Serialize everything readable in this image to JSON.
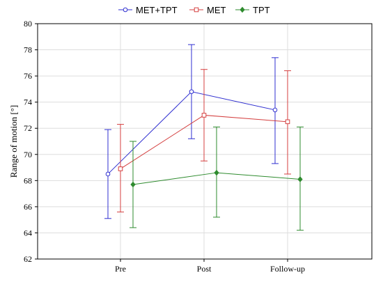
{
  "chart_data": {
    "type": "line",
    "title": "",
    "xlabel": "",
    "ylabel": "Range of motion [°]",
    "categories": [
      "Pre",
      "Post",
      "Follow-up"
    ],
    "ylim": [
      62,
      80
    ],
    "yticks": [
      62,
      64,
      66,
      68,
      70,
      72,
      74,
      76,
      78,
      80
    ],
    "grid": true,
    "legend_position": "top-center",
    "series": [
      {
        "name": "MET+TPT",
        "color": "#2f2fd0",
        "marker": "circle",
        "values": [
          68.5,
          74.8,
          73.4
        ],
        "error_low": [
          65.1,
          71.2,
          69.3
        ],
        "error_high": [
          71.9,
          78.4,
          77.4
        ]
      },
      {
        "name": "MET",
        "color": "#d43f3f",
        "marker": "square",
        "values": [
          68.9,
          73.0,
          72.5
        ],
        "error_low": [
          65.6,
          69.5,
          68.5
        ],
        "error_high": [
          72.3,
          76.5,
          76.4
        ]
      },
      {
        "name": "TPT",
        "color": "#2e8b2e",
        "marker": "diamond",
        "values": [
          67.7,
          68.6,
          68.1
        ],
        "error_low": [
          64.4,
          65.2,
          64.2
        ],
        "error_high": [
          71.0,
          72.1,
          72.1
        ]
      }
    ]
  }
}
